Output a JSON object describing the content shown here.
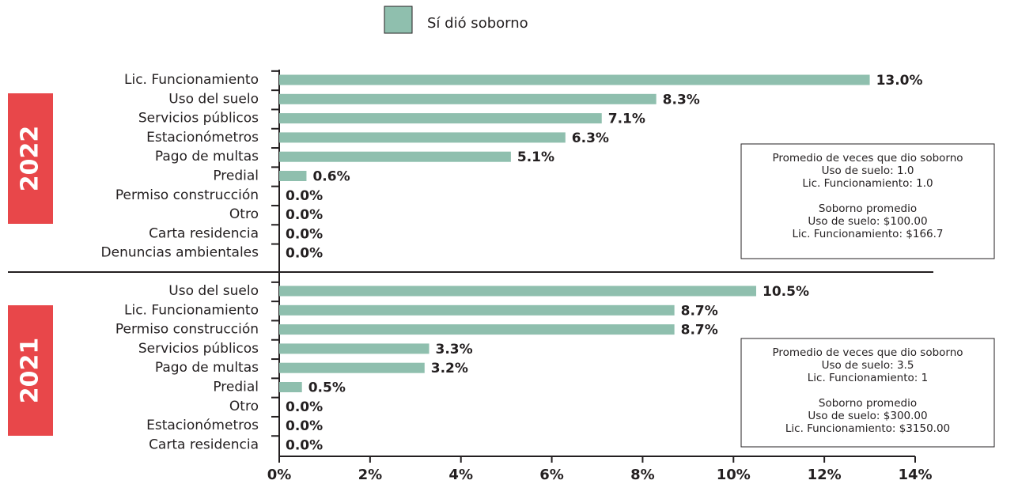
{
  "chart_data": {
    "type": "bar",
    "orientation": "horizontal",
    "series_name": "Sí dió soborno",
    "color": "#8fbfae",
    "xlim": [
      0,
      14
    ],
    "xticks": [
      {
        "value": 0,
        "label": "0%"
      },
      {
        "value": 2,
        "label": "2%"
      },
      {
        "value": 4,
        "label": "4%"
      },
      {
        "value": 6,
        "label": "6%"
      },
      {
        "value": 8,
        "label": "8%"
      },
      {
        "value": 10,
        "label": "10%"
      },
      {
        "value": 12,
        "label": "12%"
      },
      {
        "value": 14,
        "label": "14%"
      }
    ],
    "panels": [
      {
        "label": "2022",
        "categories": [
          "Lic. Funcionamiento",
          "Uso del suelo",
          "Servicios públicos",
          "Estacionómetros",
          "Pago de multas",
          "Predial",
          "Permiso construcción",
          "Otro",
          "Carta residencia",
          "Denuncias ambientales"
        ],
        "values": [
          13.0,
          8.3,
          7.1,
          6.3,
          5.1,
          0.6,
          0,
          0,
          0,
          0
        ],
        "value_labels": [
          "13.0%",
          "8.3%",
          "7.1%",
          "6.3%",
          "5.1%",
          "0.6%",
          "0.0%",
          "0.0%",
          "0.0%",
          "0.0%"
        ],
        "notes": [
          [
            "Promedio de veces que dio soborno",
            "Uso de suelo: 1.0",
            "Lic. Funcionamiento: 1.0"
          ],
          [
            "Soborno promedio",
            "Uso de suelo: $100.00",
            "Lic. Funcionamiento: $166.7"
          ]
        ]
      },
      {
        "label": "2021",
        "categories": [
          "Uso del suelo",
          "Lic. Funcionamiento",
          "Permiso construcción",
          "Servicios públicos",
          "Pago de multas",
          "Predial",
          "Otro",
          "Estacionómetros",
          "Carta residencia"
        ],
        "values": [
          10.5,
          8.7,
          8.7,
          3.3,
          3.2,
          0.5,
          0,
          0,
          0
        ],
        "value_labels": [
          "10.5%",
          "8.7%",
          "8.7%",
          "3.3%",
          "3.2%",
          "0.5%",
          "0.0%",
          "0.0%",
          "0.0%"
        ],
        "notes": [
          [
            "Promedio de veces que dio soborno",
            "Uso de suelo: 3.5",
            "Lic. Funcionamiento: 1"
          ],
          [
            "Soborno promedio",
            "Uso de suelo: $300.00",
            "Lic. Funcionamiento: $3150.00"
          ]
        ]
      }
    ]
  }
}
